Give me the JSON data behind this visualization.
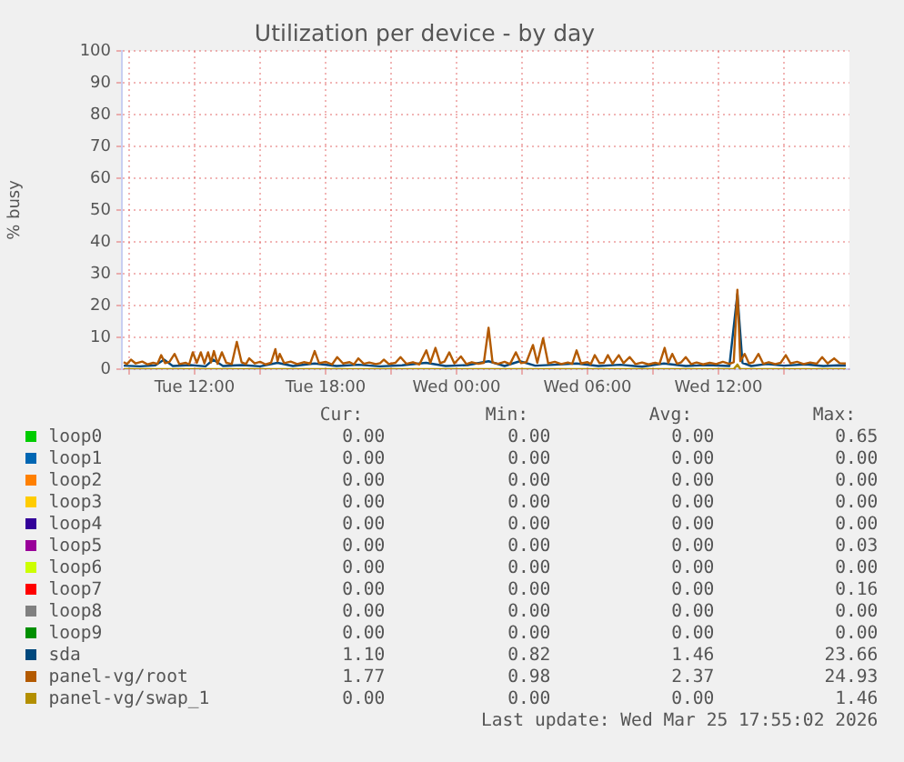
{
  "chart_data": {
    "type": "line",
    "title": "Utilization per device - by day",
    "ylabel": "% busy",
    "xlim": [
      "2026-03-24T08:40",
      "2026-03-25T18:00"
    ],
    "xticks": [
      {
        "value": "2026-03-24T09:00",
        "label": null
      },
      {
        "value": "2026-03-24T12:00",
        "label": "Tue 12:00"
      },
      {
        "value": "2026-03-24T15:00",
        "label": null
      },
      {
        "value": "2026-03-24T18:00",
        "label": "Tue 18:00"
      },
      {
        "value": "2026-03-24T21:00",
        "label": null
      },
      {
        "value": "2026-03-25T00:00",
        "label": "Wed 00:00"
      },
      {
        "value": "2026-03-25T03:00",
        "label": null
      },
      {
        "value": "2026-03-25T06:00",
        "label": "Wed 06:00"
      },
      {
        "value": "2026-03-25T09:00",
        "label": null
      },
      {
        "value": "2026-03-25T12:00",
        "label": "Wed 12:00"
      },
      {
        "value": "2026-03-25T15:00",
        "label": null
      }
    ],
    "ylim": [
      0,
      100
    ],
    "yticks": [
      0,
      10,
      20,
      30,
      40,
      50,
      60,
      70,
      80,
      90,
      100
    ],
    "grid": true,
    "legend": "bottom",
    "marker": "none",
    "series": [
      {
        "name": "loop0",
        "color": "#00cc00"
      },
      {
        "name": "loop1",
        "color": "#0066b3"
      },
      {
        "name": "loop2",
        "color": "#ff8000"
      },
      {
        "name": "loop3",
        "color": "#ffcc00"
      },
      {
        "name": "loop4",
        "color": "#330099"
      },
      {
        "name": "loop5",
        "color": "#990099"
      },
      {
        "name": "loop6",
        "color": "#ccff00"
      },
      {
        "name": "loop7",
        "color": "#ff0000"
      },
      {
        "name": "loop8",
        "color": "#808080"
      },
      {
        "name": "loop9",
        "color": "#008f00"
      },
      {
        "name": "sda",
        "color": "#00487d",
        "x": [
          "2026-03-24T08:45",
          "2026-03-24T09:30",
          "2026-03-24T10:12",
          "2026-03-24T10:36",
          "2026-03-24T11:00",
          "2026-03-24T11:48",
          "2026-03-24T12:30",
          "2026-03-24T12:51",
          "2026-03-24T13:18",
          "2026-03-24T14:12",
          "2026-03-24T15:00",
          "2026-03-24T15:48",
          "2026-03-24T16:30",
          "2026-03-24T17:30",
          "2026-03-24T18:30",
          "2026-03-24T19:30",
          "2026-03-24T20:30",
          "2026-03-24T21:30",
          "2026-03-24T22:36",
          "2026-03-24T23:30",
          "2026-03-25T00:30",
          "2026-03-25T01:28",
          "2026-03-25T02:12",
          "2026-03-25T02:54",
          "2026-03-25T03:36",
          "2026-03-25T04:30",
          "2026-03-25T05:30",
          "2026-03-25T06:30",
          "2026-03-25T07:30",
          "2026-03-25T08:30",
          "2026-03-25T09:30",
          "2026-03-25T10:30",
          "2026-03-25T11:30",
          "2026-03-25T12:30",
          "2026-03-25T12:52",
          "2026-03-25T13:06",
          "2026-03-25T13:30",
          "2026-03-25T14:12",
          "2026-03-25T15:00",
          "2026-03-25T16:00",
          "2026-03-25T16:48",
          "2026-03-25T17:30",
          "2026-03-25T17:50"
        ],
        "values": [
          1.1,
          0.9,
          1.2,
          3.0,
          1.0,
          1.3,
          0.9,
          3.0,
          1.0,
          1.3,
          0.9,
          2.0,
          1.0,
          1.8,
          1.0,
          1.4,
          0.9,
          1.2,
          2.0,
          1.0,
          1.3,
          2.5,
          1.0,
          2.5,
          1.1,
          1.4,
          1.8,
          1.0,
          1.4,
          0.8,
          1.8,
          1.0,
          1.3,
          1.0,
          23.66,
          2.0,
          1.0,
          1.6,
          1.1,
          1.5,
          1.0,
          1.2,
          1.1
        ]
      },
      {
        "name": "panel-vg/root",
        "color": "#b35a00",
        "x": [
          "2026-03-24T08:45",
          "2026-03-24T08:54",
          "2026-03-24T09:05",
          "2026-03-24T09:18",
          "2026-03-24T09:36",
          "2026-03-24T09:51",
          "2026-03-24T10:06",
          "2026-03-24T10:18",
          "2026-03-24T10:28",
          "2026-03-24T10:39",
          "2026-03-24T10:51",
          "2026-03-24T11:05",
          "2026-03-24T11:18",
          "2026-03-24T11:36",
          "2026-03-24T11:45",
          "2026-03-24T11:55",
          "2026-03-24T12:06",
          "2026-03-24T12:17",
          "2026-03-24T12:27",
          "2026-03-24T12:37",
          "2026-03-24T12:45",
          "2026-03-24T12:53",
          "2026-03-24T13:03",
          "2026-03-24T13:15",
          "2026-03-24T13:27",
          "2026-03-24T13:42",
          "2026-03-24T13:56",
          "2026-03-24T14:09",
          "2026-03-24T14:21",
          "2026-03-24T14:30",
          "2026-03-24T14:45",
          "2026-03-24T15:00",
          "2026-03-24T15:15",
          "2026-03-24T15:30",
          "2026-03-24T15:42",
          "2026-03-24T15:48",
          "2026-03-24T15:54",
          "2026-03-24T16:06",
          "2026-03-24T16:24",
          "2026-03-24T16:42",
          "2026-03-24T17:00",
          "2026-03-24T17:18",
          "2026-03-24T17:30",
          "2026-03-24T17:42",
          "2026-03-24T18:00",
          "2026-03-24T18:18",
          "2026-03-24T18:32",
          "2026-03-24T18:48",
          "2026-03-24T19:06",
          "2026-03-24T19:18",
          "2026-03-24T19:30",
          "2026-03-24T19:45",
          "2026-03-24T20:00",
          "2026-03-24T20:18",
          "2026-03-24T20:30",
          "2026-03-24T20:40",
          "2026-03-24T20:54",
          "2026-03-24T21:12",
          "2026-03-24T21:26",
          "2026-03-24T21:42",
          "2026-03-24T22:00",
          "2026-03-24T22:18",
          "2026-03-24T22:37",
          "2026-03-24T22:48",
          "2026-03-24T23:02",
          "2026-03-24T23:15",
          "2026-03-24T23:27",
          "2026-03-24T23:40",
          "2026-03-24T23:54",
          "2026-03-25T00:12",
          "2026-03-25T00:27",
          "2026-03-25T00:42",
          "2026-03-25T01:00",
          "2026-03-25T01:15",
          "2026-03-25T01:28",
          "2026-03-25T01:39",
          "2026-03-25T01:54",
          "2026-03-25T02:12",
          "2026-03-25T02:27",
          "2026-03-25T02:43",
          "2026-03-25T02:57",
          "2026-03-25T03:12",
          "2026-03-25T03:30",
          "2026-03-25T03:42",
          "2026-03-25T03:58",
          "2026-03-25T04:12",
          "2026-03-25T04:30",
          "2026-03-25T04:48",
          "2026-03-25T05:06",
          "2026-03-25T05:18",
          "2026-03-25T05:30",
          "2026-03-25T05:42",
          "2026-03-25T06:00",
          "2026-03-25T06:09",
          "2026-03-25T06:20",
          "2026-03-25T06:33",
          "2026-03-25T06:45",
          "2026-03-25T06:56",
          "2026-03-25T07:09",
          "2026-03-25T07:26",
          "2026-03-25T07:39",
          "2026-03-25T07:56",
          "2026-03-25T08:12",
          "2026-03-25T08:30",
          "2026-03-25T08:48",
          "2026-03-25T09:06",
          "2026-03-25T09:18",
          "2026-03-25T09:32",
          "2026-03-25T09:42",
          "2026-03-25T09:53",
          "2026-03-25T10:06",
          "2026-03-25T10:18",
          "2026-03-25T10:30",
          "2026-03-25T10:45",
          "2026-03-25T11:00",
          "2026-03-25T11:18",
          "2026-03-25T11:36",
          "2026-03-25T11:54",
          "2026-03-25T12:12",
          "2026-03-25T12:30",
          "2026-03-25T12:42",
          "2026-03-25T12:52",
          "2026-03-25T13:00",
          "2026-03-25T13:12",
          "2026-03-25T13:24",
          "2026-03-25T13:36",
          "2026-03-25T13:50",
          "2026-03-25T14:03",
          "2026-03-25T14:18",
          "2026-03-25T14:36",
          "2026-03-25T14:51",
          "2026-03-25T15:05",
          "2026-03-25T15:18",
          "2026-03-25T15:36",
          "2026-03-25T15:54",
          "2026-03-25T16:12",
          "2026-03-25T16:30",
          "2026-03-25T16:45",
          "2026-03-25T17:00",
          "2026-03-25T17:18",
          "2026-03-25T17:33",
          "2026-03-25T17:50"
        ],
        "values": [
          2.2,
          1.6,
          3.0,
          1.8,
          2.4,
          1.5,
          2.0,
          1.7,
          4.4,
          1.9,
          2.3,
          4.8,
          1.6,
          2.0,
          1.5,
          5.3,
          2.0,
          5.3,
          1.8,
          5.3,
          2.1,
          5.7,
          1.7,
          5.3,
          2.0,
          1.6,
          8.6,
          2.2,
          1.6,
          3.4,
          1.8,
          2.3,
          1.5,
          2.0,
          6.3,
          2.5,
          4.8,
          1.9,
          2.4,
          1.6,
          2.2,
          1.8,
          5.7,
          1.9,
          2.3,
          1.5,
          3.8,
          1.8,
          2.2,
          1.5,
          3.4,
          1.7,
          2.1,
          1.6,
          1.9,
          3.0,
          1.6,
          2.0,
          3.8,
          1.7,
          2.2,
          1.5,
          5.9,
          2.0,
          6.7,
          1.9,
          2.4,
          5.3,
          1.8,
          4.0,
          1.6,
          2.2,
          1.7,
          2.0,
          13.0,
          2.1,
          1.7,
          2.3,
          1.6,
          5.3,
          1.9,
          2.2,
          7.6,
          2.0,
          9.7,
          1.8,
          2.3,
          1.6,
          2.1,
          1.7,
          5.9,
          1.8,
          2.2,
          1.6,
          4.4,
          1.9,
          2.0,
          4.4,
          1.7,
          4.4,
          1.9,
          3.8,
          1.6,
          2.1,
          1.5,
          2.0,
          1.7,
          6.7,
          2.0,
          4.8,
          1.7,
          2.2,
          3.8,
          1.6,
          2.1,
          1.5,
          2.0,
          1.6,
          2.3,
          1.7,
          2.2,
          24.93,
          2.5,
          4.8,
          1.8,
          2.2,
          4.8,
          1.7,
          2.2,
          1.6,
          2.0,
          4.4,
          1.8,
          2.3,
          1.6,
          2.1,
          1.7,
          3.8,
          1.8,
          3.4,
          1.9,
          1.77
        ]
      },
      {
        "name": "panel-vg/swap_1",
        "color": "#b38f00",
        "x": [
          "2026-03-24T08:45",
          "2026-03-25T12:42",
          "2026-03-25T12:52",
          "2026-03-25T13:00",
          "2026-03-25T17:50"
        ],
        "values": [
          0,
          0,
          1.46,
          0,
          0
        ]
      }
    ],
    "annotations": [
      "Cur:",
      "Min:",
      "Avg:",
      "Max:",
      "0.00",
      "0.00",
      "0.00",
      "0.65",
      "0.00",
      "0.00",
      "0.00",
      "0.00",
      "0.00",
      "0.00",
      "0.00",
      "0.00",
      "0.00",
      "0.00",
      "0.00",
      "0.00",
      "0.00",
      "0.00",
      "0.00",
      "0.00",
      "0.00",
      "0.00",
      "0.00",
      "0.03",
      "0.00",
      "0.00",
      "0.00",
      "0.00",
      "0.00",
      "0.00",
      "0.00",
      "0.16",
      "0.00",
      "0.00",
      "0.00",
      "0.00",
      "0.00",
      "0.00",
      "0.00",
      "0.00",
      "1.10",
      "0.82",
      "1.46",
      "23.66",
      "1.77",
      "0.98",
      "2.37",
      "24.93",
      "0.00",
      "0.00",
      "0.00",
      "1.46",
      "Last update: Wed Mar 25 17:55:02 2026"
    ]
  }
}
